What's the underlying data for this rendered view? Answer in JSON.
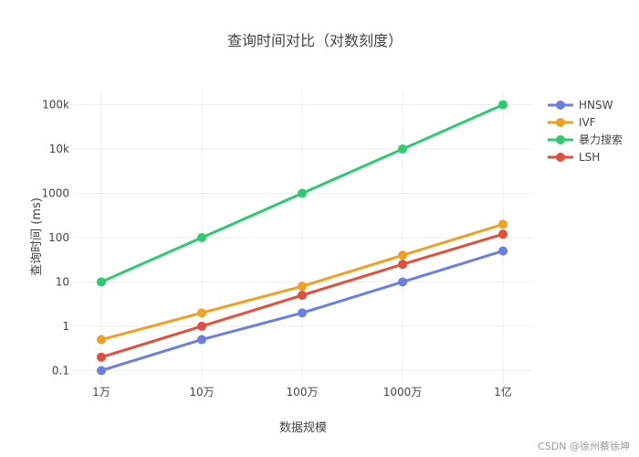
{
  "chart_data": {
    "type": "line",
    "title": "查询时间对比（对数刻度）",
    "xlabel": "数据规模",
    "ylabel": "查询时间 (ms)",
    "y_scale": "log",
    "ylim": [
      0.05,
      200000
    ],
    "y_ticks": [
      0.1,
      1,
      10,
      100,
      1000,
      10000,
      100000
    ],
    "y_tick_labels": [
      "0.1",
      "1",
      "10",
      "100",
      "1000",
      "10k",
      "100k"
    ],
    "categories": [
      "1万",
      "10万",
      "100万",
      "1000万",
      "1亿"
    ],
    "grid": true,
    "legend_position": "top-right",
    "series": [
      {
        "name": "HNSW",
        "color": "#6b7fe0",
        "values": [
          0.1,
          0.5,
          2,
          10,
          50
        ]
      },
      {
        "name": "IVF",
        "color": "#f0a024",
        "values": [
          0.5,
          2,
          8,
          40,
          200
        ]
      },
      {
        "name": "暴力搜索",
        "color": "#2ec971",
        "values": [
          10,
          100,
          1000,
          10000,
          100000
        ]
      },
      {
        "name": "LSH",
        "color": "#e0503c",
        "values": [
          0.2,
          1,
          5,
          25,
          120
        ]
      }
    ]
  },
  "watermark": "CSDN @徐州蔡徐坤"
}
